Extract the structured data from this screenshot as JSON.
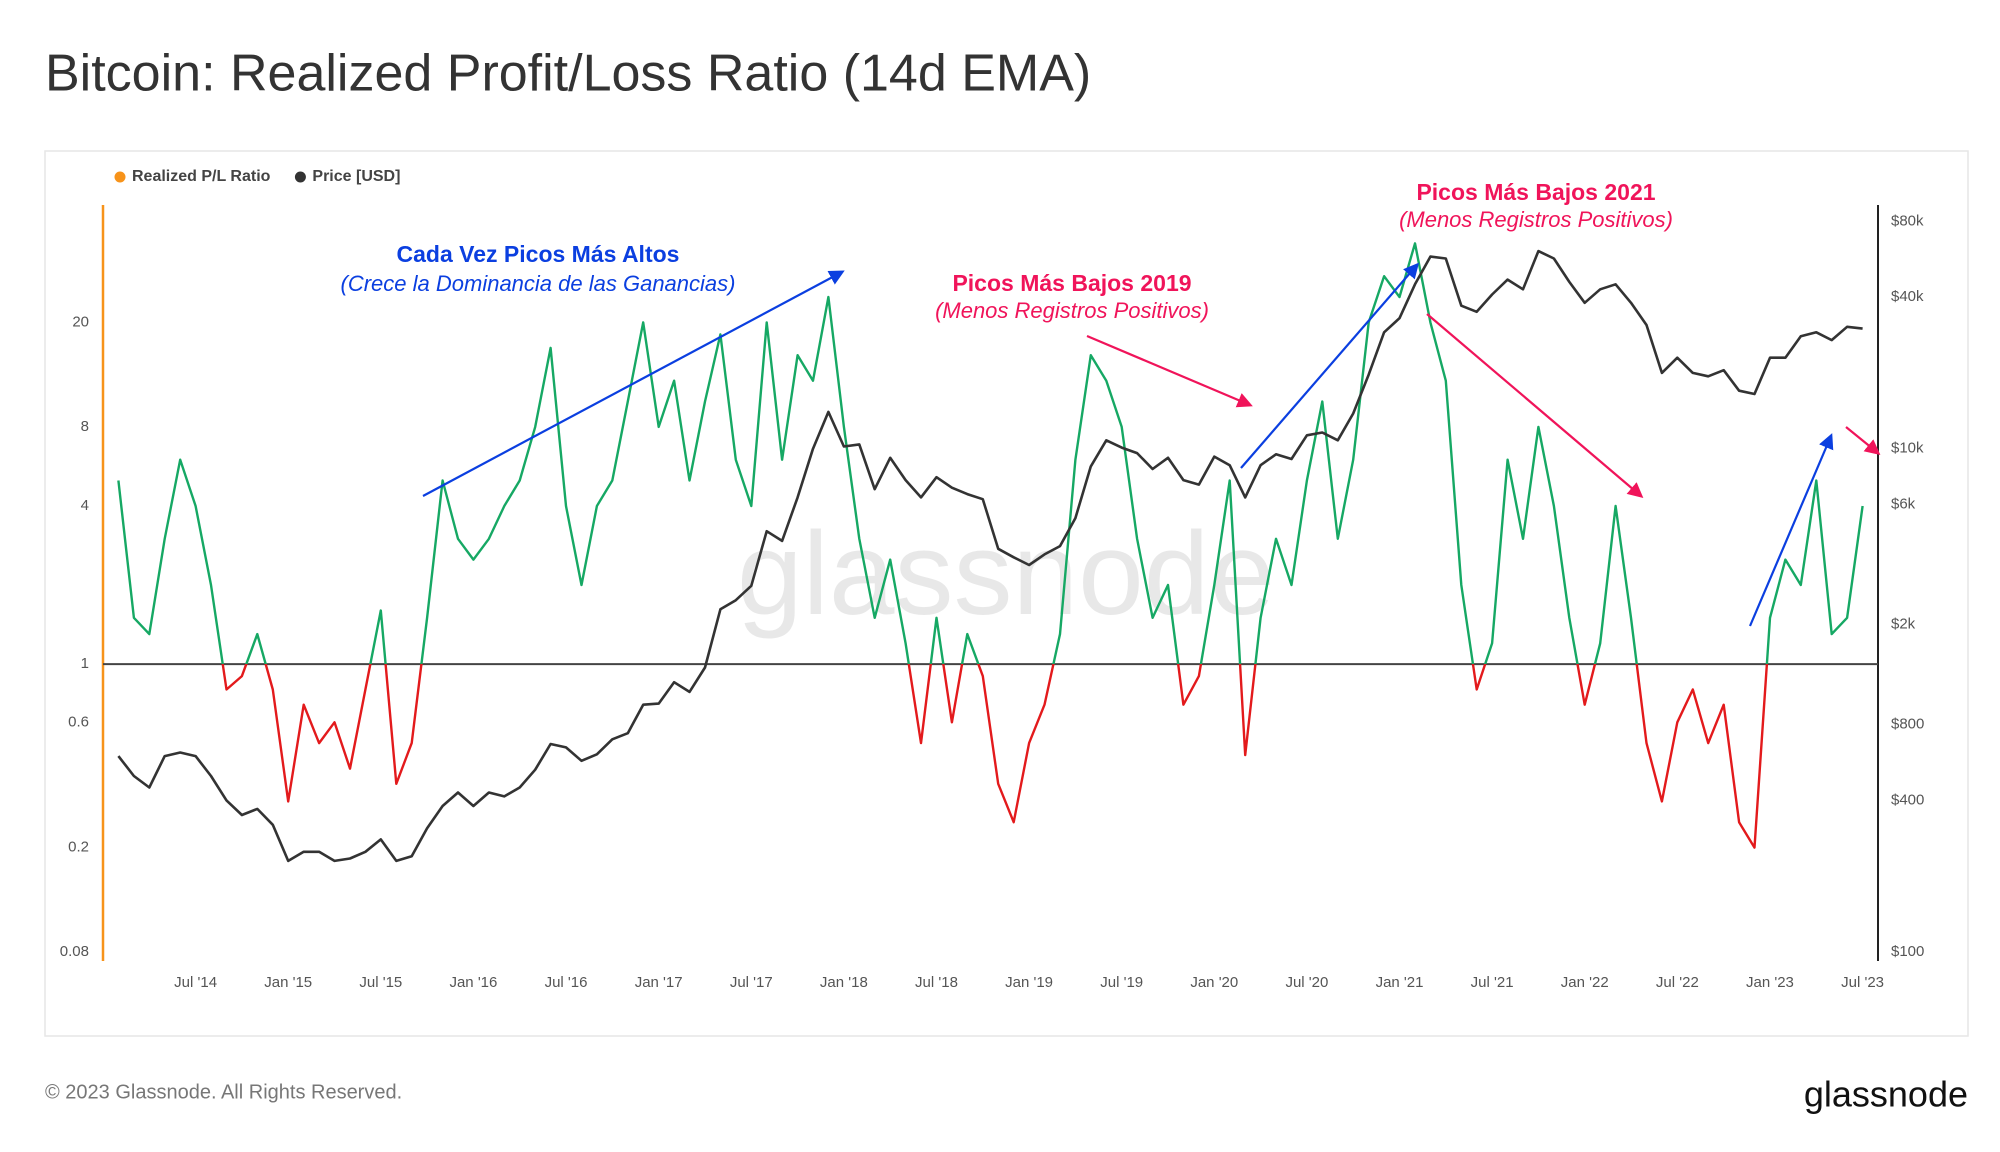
{
  "chart_data": {
    "type": "line",
    "title": "Bitcoin: Realized Profit/Loss Ratio (14d EMA)",
    "legend": "top-left",
    "grid": false,
    "log_scale": {
      "y": true,
      "y2": true
    },
    "reference_line": 1,
    "reference_color": "#444444",
    "x": [
      "2014-02",
      "2014-03",
      "2014-04",
      "2014-05",
      "2014-06",
      "2014-07",
      "2014-08",
      "2014-09",
      "2014-10",
      "2014-11",
      "2014-12",
      "2015-01",
      "2015-02",
      "2015-03",
      "2015-04",
      "2015-05",
      "2015-06",
      "2015-07",
      "2015-08",
      "2015-09",
      "2015-10",
      "2015-11",
      "2015-12",
      "2016-01",
      "2016-02",
      "2016-03",
      "2016-04",
      "2016-05",
      "2016-06",
      "2016-07",
      "2016-08",
      "2016-09",
      "2016-10",
      "2016-11",
      "2016-12",
      "2017-01",
      "2017-02",
      "2017-03",
      "2017-04",
      "2017-05",
      "2017-06",
      "2017-07",
      "2017-08",
      "2017-09",
      "2017-10",
      "2017-11",
      "2017-12",
      "2018-01",
      "2018-02",
      "2018-03",
      "2018-04",
      "2018-05",
      "2018-06",
      "2018-07",
      "2018-08",
      "2018-09",
      "2018-10",
      "2018-11",
      "2018-12",
      "2019-01",
      "2019-02",
      "2019-03",
      "2019-04",
      "2019-05",
      "2019-06",
      "2019-07",
      "2019-08",
      "2019-09",
      "2019-10",
      "2019-11",
      "2019-12",
      "2020-01",
      "2020-02",
      "2020-03",
      "2020-04",
      "2020-05",
      "2020-06",
      "2020-07",
      "2020-08",
      "2020-09",
      "2020-10",
      "2020-11",
      "2020-12",
      "2021-01",
      "2021-02",
      "2021-03",
      "2021-04",
      "2021-05",
      "2021-06",
      "2021-07",
      "2021-08",
      "2021-09",
      "2021-10",
      "2021-11",
      "2021-12",
      "2022-01",
      "2022-02",
      "2022-03",
      "2022-04",
      "2022-05",
      "2022-06",
      "2022-07",
      "2022-08",
      "2022-09",
      "2022-10",
      "2022-11",
      "2022-12",
      "2023-01",
      "2023-02",
      "2023-03",
      "2023-04",
      "2023-05",
      "2023-06",
      "2023-07"
    ],
    "series": [
      {
        "name": "Realized P/L Ratio",
        "color": "#f7931a",
        "line_colors": {
          "above": "#16a864",
          "below": "#e31a1c"
        },
        "values": [
          5,
          1.5,
          1.3,
          3,
          6,
          4,
          2,
          0.8,
          0.9,
          1.3,
          0.8,
          0.3,
          0.7,
          0.5,
          0.6,
          0.4,
          0.8,
          1.6,
          0.35,
          0.5,
          1.5,
          5,
          3,
          2.5,
          3,
          4,
          5,
          8,
          16,
          4,
          2,
          4,
          5,
          10,
          20,
          8,
          12,
          5,
          10,
          18,
          6,
          4,
          20,
          6,
          15,
          12,
          25,
          8,
          3,
          1.5,
          2.5,
          1.2,
          0.5,
          1.5,
          0.6,
          1.3,
          0.9,
          0.35,
          0.25,
          0.5,
          0.7,
          1.3,
          6,
          15,
          12,
          8,
          3,
          1.5,
          2,
          0.7,
          0.9,
          2,
          5,
          0.45,
          1.5,
          3,
          2,
          5,
          10,
          3,
          6,
          20,
          30,
          25,
          40,
          20,
          12,
          2,
          0.8,
          1.2,
          6,
          3,
          8,
          4,
          1.5,
          0.7,
          1.2,
          4,
          1.5,
          0.5,
          0.3,
          0.6,
          0.8,
          0.5,
          0.7,
          0.25,
          0.2,
          1.5,
          2.5,
          2,
          5,
          1.3,
          1.5,
          4
        ]
      },
      {
        "name": "Price [USD]",
        "color": "#333333",
        "axis": "y2",
        "values": [
          600,
          500,
          450,
          600,
          620,
          600,
          500,
          400,
          350,
          370,
          320,
          230,
          250,
          250,
          230,
          235,
          250,
          280,
          230,
          240,
          310,
          380,
          430,
          380,
          430,
          415,
          450,
          530,
          670,
          650,
          575,
          610,
          700,
          740,
          960,
          970,
          1180,
          1080,
          1350,
          2300,
          2500,
          2850,
          4700,
          4300,
          6400,
          10000,
          14000,
          10200,
          10400,
          6900,
          9200,
          7500,
          6400,
          7700,
          7000,
          6600,
          6300,
          4000,
          3700,
          3450,
          3800,
          4100,
          5300,
          8500,
          10800,
          10100,
          9600,
          8300,
          9200,
          7500,
          7200,
          9300,
          8600,
          6400,
          8600,
          9500,
          9100,
          11300,
          11600,
          10800,
          13800,
          19700,
          29000,
          33000,
          45000,
          58000,
          57000,
          37000,
          35000,
          41000,
          47000,
          43000,
          61000,
          57000,
          46000,
          38000,
          43000,
          45000,
          38000,
          31000,
          20000,
          23000,
          20000,
          19400,
          20500,
          17000,
          16500,
          23000,
          23000,
          28000,
          29000,
          27000,
          30500,
          30000
        ]
      }
    ],
    "xlim": [
      "2014-01",
      "2023-08"
    ],
    "xticks": [
      {
        "value": "2014-07",
        "label": "Jul '14"
      },
      {
        "value": "2015-01",
        "label": "Jan '15"
      },
      {
        "value": "2015-07",
        "label": "Jul '15"
      },
      {
        "value": "2016-01",
        "label": "Jan '16"
      },
      {
        "value": "2016-07",
        "label": "Jul '16"
      },
      {
        "value": "2017-01",
        "label": "Jan '17"
      },
      {
        "value": "2017-07",
        "label": "Jul '17"
      },
      {
        "value": "2018-01",
        "label": "Jan '18"
      },
      {
        "value": "2018-07",
        "label": "Jul '18"
      },
      {
        "value": "2019-01",
        "label": "Jan '19"
      },
      {
        "value": "2019-07",
        "label": "Jul '19"
      },
      {
        "value": "2020-01",
        "label": "Jan '20"
      },
      {
        "value": "2020-07",
        "label": "Jul '20"
      },
      {
        "value": "2021-01",
        "label": "Jan '21"
      },
      {
        "value": "2021-07",
        "label": "Jul '21"
      },
      {
        "value": "2022-01",
        "label": "Jan '22"
      },
      {
        "value": "2022-07",
        "label": "Jul '22"
      },
      {
        "value": "2023-01",
        "label": "Jan '23"
      },
      {
        "value": "2023-07",
        "label": "Jul '23"
      }
    ],
    "ylim": [
      0.074,
      56
    ],
    "yticks": [
      0.08,
      0.2,
      0.6,
      1,
      4,
      8,
      20
    ],
    "y2lim": [
      92,
      93000
    ],
    "y2ticks": [
      {
        "value": 100,
        "label": "$100"
      },
      {
        "value": 400,
        "label": "$400"
      },
      {
        "value": 800,
        "label": "$800"
      },
      {
        "value": 2000,
        "label": "$2k"
      },
      {
        "value": 6000,
        "label": "$6k"
      },
      {
        "value": 10000,
        "label": "$10k"
      },
      {
        "value": 40000,
        "label": "$40k"
      },
      {
        "value": 80000,
        "label": "$80k"
      }
    ],
    "annotations": [
      {
        "title": "Cada Vez Picos Más Altos",
        "subtitle": "(Crece la Dominancia de las Ganancias)",
        "color": "#0b3fe0"
      },
      {
        "title": "Picos Más Bajos 2019",
        "subtitle": "(Menos Registros Positivos)",
        "color": "#f0145a"
      },
      {
        "title": "Picos Más Bajos 2021",
        "subtitle": "(Menos Registros Positivos)",
        "color": "#f0145a"
      }
    ],
    "watermark": "glassnode"
  },
  "footer": {
    "copyright": "© 2023 Glassnode. All Rights Reserved.",
    "logo": "glassnode"
  }
}
